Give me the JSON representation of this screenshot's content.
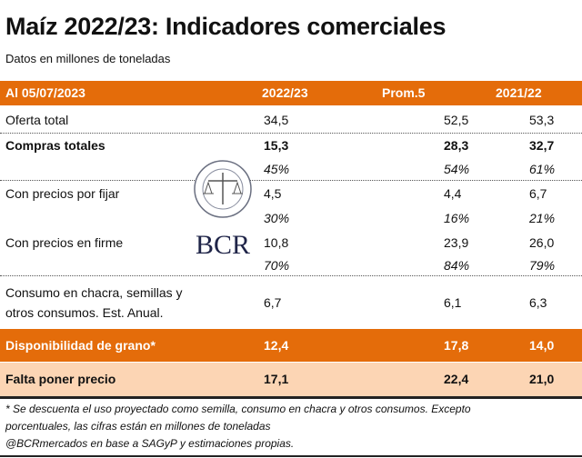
{
  "title": "Maíz 2022/23: Indicadores comerciales",
  "subtitle": "Datos en millones de toneladas",
  "header": {
    "label": "Al 05/07/2023",
    "cols": [
      "2022/23",
      "Prom.5",
      "2021/22"
    ]
  },
  "rows": [
    {
      "label": "Oferta total",
      "values": [
        "34,5",
        "52,5",
        "53,3"
      ]
    },
    {
      "label": "Compras totales",
      "values": [
        "15,3",
        "28,3",
        "32,7"
      ],
      "pct": [
        "45%",
        "54%",
        "61%"
      ]
    },
    {
      "label": "Con precios por fijar",
      "values": [
        "4,5",
        "4,4",
        "6,7"
      ],
      "pct": [
        "30%",
        "16%",
        "21%"
      ]
    },
    {
      "label": "Con precios en firme",
      "values": [
        "10,8",
        "23,9",
        "26,0"
      ],
      "pct": [
        "70%",
        "84%",
        "79%"
      ]
    },
    {
      "label_line1": "Consumo en chacra, semillas y",
      "label_line2": "otros consumos. Est. Anual.",
      "values": [
        "6,7",
        "6,1",
        "6,3"
      ]
    },
    {
      "label": "Disponibilidad de grano*",
      "values": [
        "12,4",
        "17,8",
        "14,0"
      ]
    },
    {
      "label": "Falta poner precio",
      "values": [
        "17,1",
        "22,4",
        "21,0"
      ]
    }
  ],
  "footnote": {
    "line1": "* Se descuenta el uso proyectado como semilla, consumo en chacra y otros consumos. Excepto",
    "line2": "porcentuales, las cifras están en millones de toneladas",
    "line3": "@BCRmercados en base a SAGyP y estimaciones propias."
  },
  "logo": {
    "text": "BCR",
    "seal_text": "BOLSA DE COMERCIO DE ROSARIO"
  },
  "colors": {
    "orange": "#E46C0A",
    "peach": "#FCD5B4",
    "logo_navy": "#1F2448"
  }
}
